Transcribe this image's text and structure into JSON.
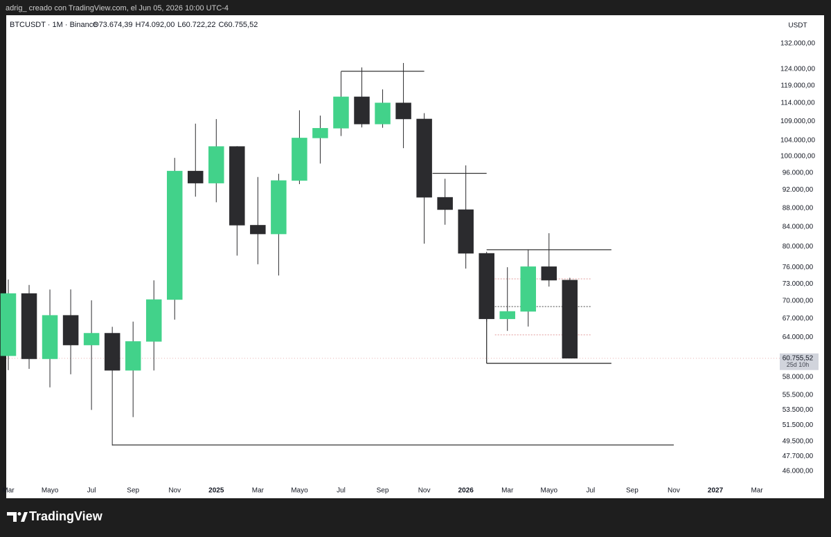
{
  "header": {
    "text": "adrig_ creado con TradingView.com, el Jun 05, 2026 10:00 UTC-4"
  },
  "brand": "TradingView",
  "chart_data": {
    "type": "candlestick",
    "symbol": "BTCUSDT · 1M · Binance",
    "ohlc_legend": [
      {
        "key": "O",
        "label": "73.674,39"
      },
      {
        "key": "H",
        "label": "74.092,00"
      },
      {
        "key": "L",
        "label": "60.722,22"
      },
      {
        "key": "C",
        "label": "60.755,52"
      }
    ],
    "y_axis_label": "USDT",
    "log_scale": true,
    "ylim": [
      43020,
      141570
    ],
    "yticks": [
      {
        "value": 132000,
        "label": "132.000,00"
      },
      {
        "value": 124000,
        "label": "124.000,00"
      },
      {
        "value": 119000,
        "label": "119.000,00"
      },
      {
        "value": 114000,
        "label": "114.000,00"
      },
      {
        "value": 109000,
        "label": "109.000,00"
      },
      {
        "value": 104000,
        "label": "104.000,00"
      },
      {
        "value": 100000,
        "label": "100.000,00"
      },
      {
        "value": 96000,
        "label": "96.000,00"
      },
      {
        "value": 92000,
        "label": "92.000,00"
      },
      {
        "value": 88000,
        "label": "88.000,00"
      },
      {
        "value": 84000,
        "label": "84.000,00"
      },
      {
        "value": 80000,
        "label": "80.000,00"
      },
      {
        "value": 76000,
        "label": "76.000,00"
      },
      {
        "value": 73000,
        "label": "73.000,00"
      },
      {
        "value": 70000,
        "label": "70.000,00"
      },
      {
        "value": 67000,
        "label": "67.000,00"
      },
      {
        "value": 64000,
        "label": "64.000,00"
      },
      {
        "value": 58000,
        "label": "58.000,00"
      },
      {
        "value": 55500,
        "label": "55.500,00"
      },
      {
        "value": 53500,
        "label": "53.500,00"
      },
      {
        "value": 51500,
        "label": "51.500,00"
      },
      {
        "value": 49500,
        "label": "49.500,00"
      },
      {
        "value": 47700,
        "label": "47.700,00"
      },
      {
        "value": 46000,
        "label": "46.000,00"
      }
    ],
    "categories": [
      "Mar",
      null,
      "Mayo",
      null,
      "Jul",
      null,
      "Sep",
      null,
      "Nov",
      null,
      "2025",
      null,
      "Mar",
      null,
      "Mayo",
      null,
      "Jul",
      null,
      "Sep",
      null,
      "Nov",
      null,
      "2026",
      null,
      "Mar",
      null,
      "Mayo",
      null,
      "Jul",
      null,
      "Sep",
      null,
      "Nov",
      null,
      "2027",
      null,
      "Mar"
    ],
    "open": [
      61130.99,
      71280,
      60672,
      67540,
      62772,
      64628,
      58974,
      63327,
      70215,
      96407,
      93576,
      102429,
      84350,
      82550,
      94172,
      104591,
      107135,
      115764,
      108246,
      114049,
      109608,
      90360,
      87648,
      78700,
      66950,
      68200,
      76150,
      73674.39,
      null,
      null,
      null,
      null,
      null,
      null,
      null,
      null,
      null
    ],
    "high": [
      73777,
      72797,
      71979,
      71997,
      70079,
      65660,
      66498,
      73620,
      99588,
      108353,
      109588,
      102500,
      95000,
      95758,
      111980,
      110530,
      123218,
      124474,
      117900,
      125840,
      111190,
      94588,
      97750,
      79000,
      76050,
      79400,
      82700,
      74092,
      null,
      null,
      null,
      null,
      null,
      null,
      null,
      null,
      null
    ],
    "low": [
      59005,
      59191,
      56552,
      58402,
      53485,
      49000,
      52550,
      58946,
      66835,
      90500,
      89256,
      78258,
      76606,
      74508,
      93346,
      98200,
      105100,
      107350,
      107255,
      102000,
      80600,
      84450,
      75800,
      66500,
      65000,
      65700,
      72500,
      60722.22,
      null,
      null,
      null,
      null,
      null,
      null,
      null,
      null,
      null
    ],
    "close": [
      71280,
      60672,
      67540,
      62772,
      64628,
      58974,
      63327,
      70215,
      96407,
      93576,
      102429,
      84350,
      82550,
      94172,
      104591,
      107135,
      115764,
      108246,
      114049,
      109608,
      90360,
      87648,
      78700,
      66950,
      68200,
      76150,
      73650,
      60755.52,
      null,
      null,
      null,
      null,
      null,
      null,
      null,
      null,
      null
    ],
    "up_color": "#42d28a",
    "down_color": "#2b2b2e",
    "hlines": [
      {
        "value": 123300,
        "x": [
          16,
          20
        ],
        "color": "#333333",
        "style": "solid"
      },
      {
        "value": 95860,
        "x": [
          20.4,
          23
        ],
        "color": "#333333",
        "style": "solid"
      },
      {
        "value": 79400,
        "x": [
          23,
          29
        ],
        "color": "#333333",
        "style": "solid"
      },
      {
        "value": 60000,
        "x": [
          23,
          29
        ],
        "color": "#333333",
        "style": "solid"
      },
      {
        "value": 49060,
        "x": [
          5,
          32
        ],
        "color": "#333333",
        "style": "solid"
      },
      {
        "value": 73900,
        "x": [
          23.4,
          28
        ],
        "color": "#e29a9a",
        "style": "dotted"
      },
      {
        "value": 69020,
        "x": [
          23.4,
          28
        ],
        "color": "#444444",
        "style": "dotted"
      },
      {
        "value": 64370,
        "x": [
          23.4,
          28
        ],
        "color": "#e29a9a",
        "style": "dotted"
      }
    ],
    "vlines": [
      {
        "x": 23,
        "from": 60000,
        "to": 66950,
        "color": "#333333"
      }
    ],
    "last_price": {
      "value": 60755.52,
      "label": "60.755,52",
      "countdown": "25d 10h"
    }
  }
}
